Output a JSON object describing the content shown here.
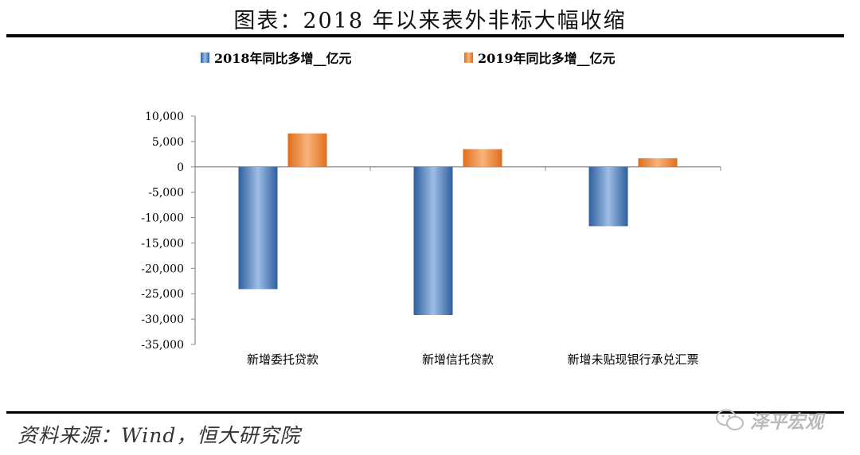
{
  "title": "图表：2018 年以来表外非标大幅收缩",
  "source": "资料来源：Wind，恒大研究院",
  "watermark": "泽平宏观",
  "colors": {
    "series_2018": "#4f81bd",
    "series_2019": "#f79646"
  },
  "chart_data": {
    "type": "bar",
    "categories": [
      "新增委托贷款",
      "新增信托贷款",
      "新增未贴现银行承兑汇票"
    ],
    "series": [
      {
        "name": "2018年同比多增__亿元",
        "values": [
          -24100,
          -29200,
          -11700
        ]
      },
      {
        "name": "2019年同比多增__亿元",
        "values": [
          6600,
          3500,
          1700
        ]
      }
    ],
    "ylim": [
      -35000,
      10000
    ],
    "yticks": [
      10000,
      5000,
      0,
      -5000,
      -10000,
      -15000,
      -20000,
      -25000,
      -30000,
      -35000
    ],
    "ytick_labels": [
      "10,000",
      "5,000",
      "0",
      "-5,000",
      "-10,000",
      "-15,000",
      "-20,000",
      "-25,000",
      "-30,000",
      "-35,000"
    ],
    "grid": false,
    "legend_position": "top"
  }
}
